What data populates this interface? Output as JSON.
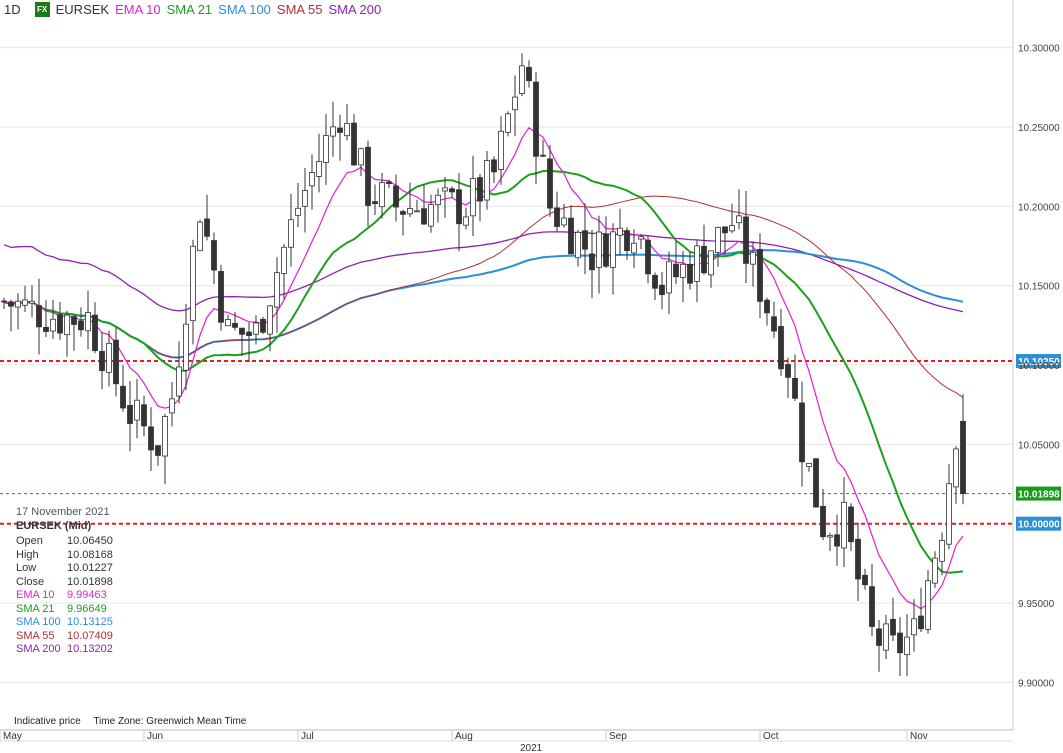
{
  "header": {
    "timeframe": "1D",
    "fx_badge": "FX",
    "symbol": "EURSEK",
    "indicators": [
      {
        "label": "EMA 10",
        "color": "#e020d0"
      },
      {
        "label": "SMA 21",
        "color": "#1aa01a"
      },
      {
        "label": "SMA 100",
        "color": "#2a8fd8"
      },
      {
        "label": "SMA 55",
        "color": "#b03030"
      },
      {
        "label": "SMA 200",
        "color": "#9020b0"
      }
    ]
  },
  "info_panel": {
    "date": "17 November 2021",
    "instrument": "EURSEK (Mid)",
    "rows": [
      {
        "key": "Open",
        "value": "10.06450",
        "color": "#333333"
      },
      {
        "key": "High",
        "value": "10.08168",
        "color": "#333333"
      },
      {
        "key": "Low",
        "value": "10.01227",
        "color": "#333333"
      },
      {
        "key": "Close",
        "value": "10.01898",
        "color": "#333333"
      },
      {
        "key": "EMA 10",
        "value": "9.99463",
        "color": "#e020d0"
      },
      {
        "key": "SMA 21",
        "value": "9.96649",
        "color": "#1aa01a"
      },
      {
        "key": "SMA 100",
        "value": "10.13125",
        "color": "#2a8fd8"
      },
      {
        "key": "SMA 55",
        "value": "10.07409",
        "color": "#b03030"
      },
      {
        "key": "SMA 200",
        "value": "10.13202",
        "color": "#9020b0"
      }
    ]
  },
  "footer": {
    "indicative": "Indicative price",
    "timezone": "Time Zone: Greenwich Mean Time"
  },
  "chart_data": {
    "type": "candlestick",
    "year_label": "2021",
    "ylim": [
      9.87,
      10.33
    ],
    "y_ticks": [
      9.9,
      9.95,
      10.0,
      10.05,
      10.1,
      10.15,
      10.2,
      10.25,
      10.3
    ],
    "y_tick_labels": [
      "9.90000",
      "9.95000",
      "10.00000",
      "10.05000",
      "10.10000",
      "10.15000",
      "10.20000",
      "10.25000",
      "10.30000"
    ],
    "month_labels": [
      {
        "label": "May",
        "index": -1
      },
      {
        "label": "Jun",
        "index": 20
      },
      {
        "label": "Jul",
        "index": 42
      },
      {
        "label": "Aug",
        "index": 64
      },
      {
        "label": "Sep",
        "index": 86
      },
      {
        "label": "Oct",
        "index": 108
      },
      {
        "label": "Nov",
        "index": 129
      }
    ],
    "hlines": [
      {
        "value": 10.1025,
        "label": "10.10250",
        "color": "#e02020",
        "style": "dotted"
      },
      {
        "value": 10.0,
        "label": "10.00000",
        "color": "#e02020",
        "style": "dotted"
      },
      {
        "value": 10.01898,
        "label": "10.01898",
        "color": "#1a9a1a",
        "style": "thin-dashed"
      }
    ],
    "close_start": 10.14,
    "close_end": 10.01898,
    "close_anchors": [
      [
        0,
        10.14
      ],
      [
        8,
        10.13
      ],
      [
        12,
        10.13
      ],
      [
        18,
        10.07
      ],
      [
        22,
        10.05
      ],
      [
        24,
        10.08
      ],
      [
        28,
        10.2
      ],
      [
        32,
        10.12
      ],
      [
        36,
        10.12
      ],
      [
        42,
        10.2
      ],
      [
        48,
        10.26
      ],
      [
        52,
        10.21
      ],
      [
        56,
        10.2
      ],
      [
        60,
        10.2
      ],
      [
        66,
        10.2
      ],
      [
        70,
        10.22
      ],
      [
        74,
        10.29
      ],
      [
        78,
        10.2
      ],
      [
        84,
        10.17
      ],
      [
        90,
        10.19
      ],
      [
        94,
        10.15
      ],
      [
        100,
        10.17
      ],
      [
        104,
        10.19
      ],
      [
        108,
        10.15
      ],
      [
        112,
        10.1
      ],
      [
        114,
        10.05
      ],
      [
        117,
        10.0
      ],
      [
        120,
        10.0
      ],
      [
        124,
        9.93
      ],
      [
        127,
        9.92
      ],
      [
        130,
        9.93
      ],
      [
        134,
        10.0
      ],
      [
        136,
        10.06
      ],
      [
        137,
        10.01898
      ]
    ]
  }
}
